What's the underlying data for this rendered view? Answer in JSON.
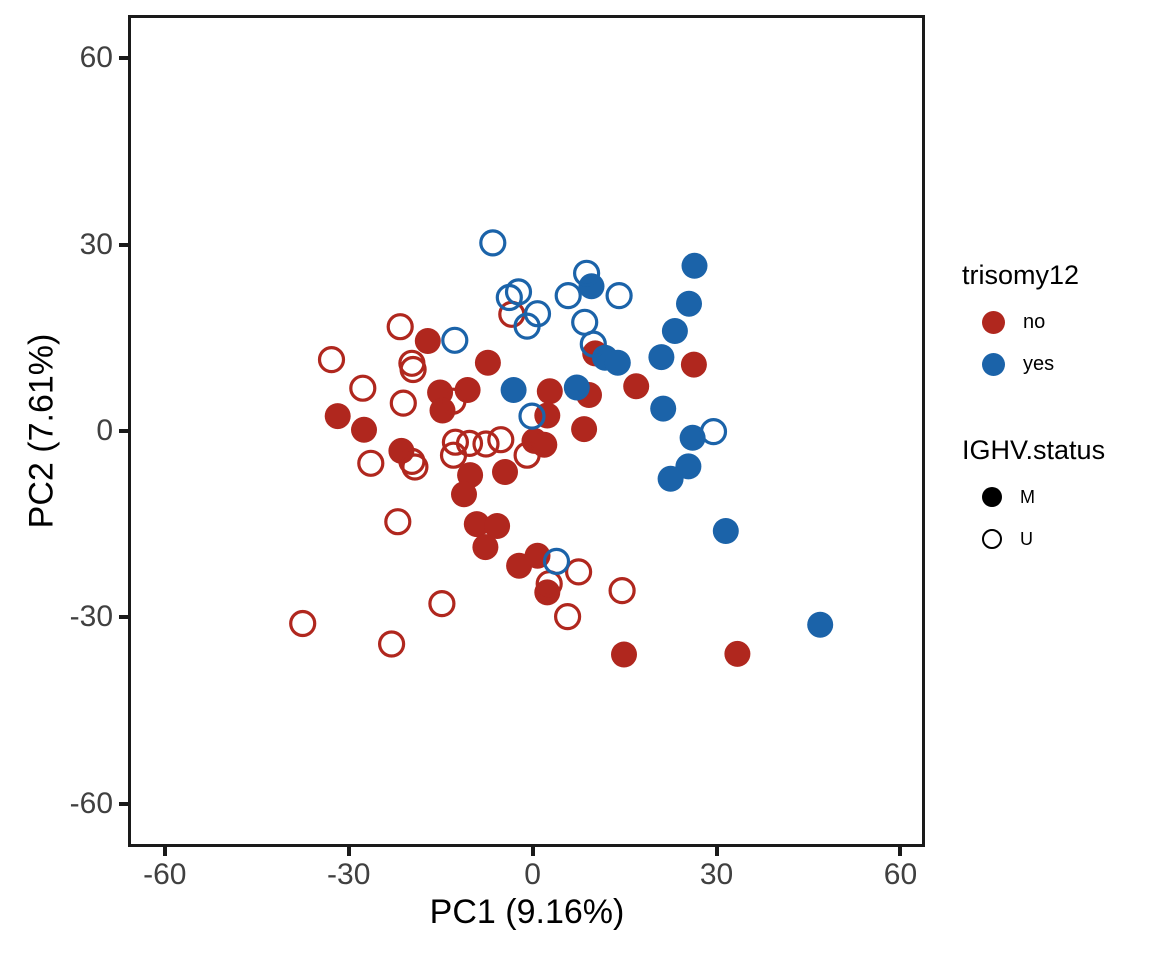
{
  "figure": {
    "background": "#FFFFFF"
  },
  "colors": {
    "no": "#B0271E",
    "yes": "#1B63A9",
    "axis_text": "#404040",
    "axis_title": "#000000",
    "panel_border": "#1A1A1A"
  },
  "chart_data": {
    "type": "scatter",
    "title": "",
    "xlabel": "PC1 (9.16%)",
    "ylabel": "PC2 (7.61%)",
    "xlim": [
      -66,
      64
    ],
    "ylim": [
      -67,
      67
    ],
    "xticks": [
      -60,
      -30,
      0,
      30,
      60
    ],
    "yticks": [
      -60,
      -30,
      0,
      30,
      60
    ],
    "grid": "off",
    "legend_position": "right",
    "legend": {
      "groups": [
        {
          "title": "trisomy12",
          "items": [
            {
              "label": "no",
              "color": "#B0271E",
              "shape": "filled"
            },
            {
              "label": "yes",
              "color": "#1B63A9",
              "shape": "filled"
            }
          ]
        },
        {
          "title": "IGHV.status",
          "items": [
            {
              "label": "M",
              "color": "#000000",
              "shape": "filled"
            },
            {
              "label": "U",
              "color": "#000000",
              "shape": "open"
            }
          ]
        }
      ]
    },
    "series": [
      {
        "name": "trisomy12 no / IGHV M",
        "color": "#B0271E",
        "shape": "filled",
        "points": [
          [
            -17.1,
            14.5
          ],
          [
            -7.3,
            11.0
          ],
          [
            -15.1,
            6.2
          ],
          [
            -10.6,
            6.6
          ],
          [
            -14.7,
            3.3
          ],
          [
            -31.8,
            2.4
          ],
          [
            -27.5,
            0.2
          ],
          [
            -21.4,
            -3.2
          ],
          [
            10.2,
            12.5
          ],
          [
            2.8,
            6.4
          ],
          [
            2.4,
            2.5
          ],
          [
            9.2,
            5.8
          ],
          [
            8.4,
            0.3
          ],
          [
            16.9,
            7.2
          ],
          [
            26.3,
            10.7
          ],
          [
            -4.5,
            -6.6
          ],
          [
            0.3,
            -1.6
          ],
          [
            1.9,
            -2.2
          ],
          [
            -10.2,
            -7.1
          ],
          [
            -11.2,
            -10.2
          ],
          [
            -9.1,
            -15.0
          ],
          [
            -5.8,
            -15.3
          ],
          [
            -7.7,
            -18.7
          ],
          [
            -2.2,
            -21.7
          ],
          [
            0.8,
            -20.1
          ],
          [
            2.4,
            -26.0
          ],
          [
            14.9,
            -36.0
          ],
          [
            33.4,
            -35.9
          ]
        ]
      },
      {
        "name": "trisomy12 no / IGHV U",
        "color": "#B0271E",
        "shape": "open",
        "points": [
          [
            -21.6,
            16.8
          ],
          [
            -32.8,
            11.5
          ],
          [
            -19.7,
            10.9
          ],
          [
            -19.5,
            9.9
          ],
          [
            -27.7,
            6.9
          ],
          [
            -21.1,
            4.5
          ],
          [
            -13.0,
            4.8
          ],
          [
            -3.4,
            18.8
          ],
          [
            -26.4,
            -5.2
          ],
          [
            -19.7,
            -4.9
          ],
          [
            -19.2,
            -5.8
          ],
          [
            -12.6,
            -1.8
          ],
          [
            -12.9,
            -3.9
          ],
          [
            -10.3,
            -2.0
          ],
          [
            -7.6,
            -2.1
          ],
          [
            -5.2,
            -1.4
          ],
          [
            -0.9,
            -3.9
          ],
          [
            -22.0,
            -14.6
          ],
          [
            -14.8,
            -27.8
          ],
          [
            -37.5,
            -31.0
          ],
          [
            -23.0,
            -34.3
          ],
          [
            7.5,
            -22.7
          ],
          [
            2.7,
            -24.6
          ],
          [
            5.7,
            -29.9
          ],
          [
            14.6,
            -25.7
          ]
        ]
      },
      {
        "name": "trisomy12 yes / IGHV M",
        "color": "#1B63A9",
        "shape": "filled",
        "points": [
          [
            9.6,
            23.3
          ],
          [
            26.4,
            26.6
          ],
          [
            25.5,
            20.5
          ],
          [
            23.2,
            16.1
          ],
          [
            21.0,
            11.9
          ],
          [
            11.8,
            11.8
          ],
          [
            13.9,
            11.0
          ],
          [
            7.2,
            7.0
          ],
          [
            -3.1,
            6.6
          ],
          [
            21.3,
            3.6
          ],
          [
            26.1,
            -1.1
          ],
          [
            25.4,
            -5.7
          ],
          [
            22.5,
            -7.7
          ],
          [
            31.5,
            -16.1
          ],
          [
            46.9,
            -31.2
          ]
        ]
      },
      {
        "name": "trisomy12 yes / IGHV U",
        "color": "#1B63A9",
        "shape": "open",
        "points": [
          [
            -6.5,
            30.3
          ],
          [
            8.8,
            25.4
          ],
          [
            14.1,
            21.8
          ],
          [
            5.8,
            21.8
          ],
          [
            -2.3,
            22.4
          ],
          [
            -3.8,
            21.5
          ],
          [
            0.8,
            18.9
          ],
          [
            -0.9,
            16.9
          ],
          [
            8.5,
            17.5
          ],
          [
            9.9,
            14.0
          ],
          [
            -12.7,
            14.6
          ],
          [
            -0.1,
            2.4
          ],
          [
            29.5,
            -0.1
          ],
          [
            3.9,
            -21.0
          ]
        ]
      }
    ]
  }
}
